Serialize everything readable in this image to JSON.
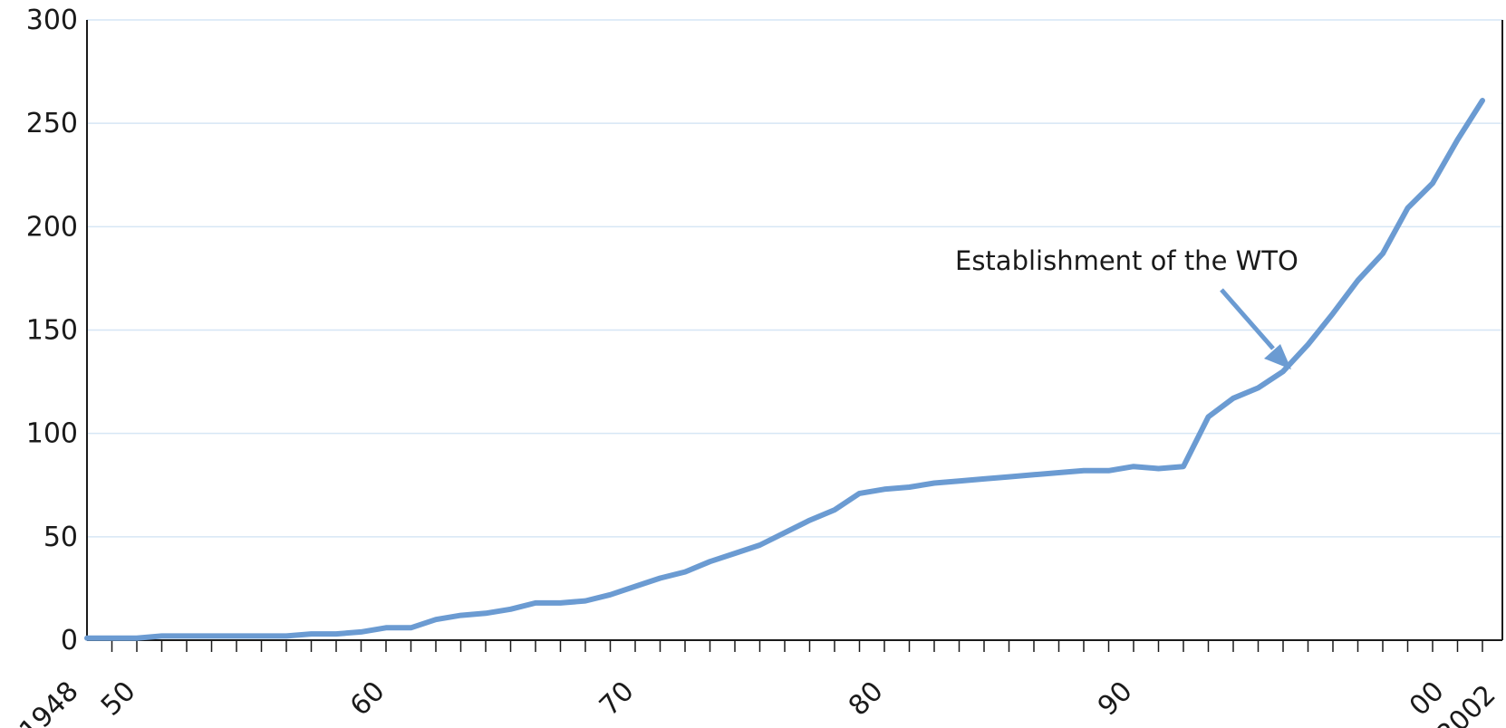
{
  "chart_data": {
    "type": "line",
    "title": "",
    "xlabel": "",
    "ylabel": "",
    "xlim": [
      1948,
      2002
    ],
    "ylim": [
      0,
      300
    ],
    "grid": true,
    "legend": "none",
    "y_ticks": [
      {
        "value": 0,
        "label": "0"
      },
      {
        "value": 50,
        "label": "50"
      },
      {
        "value": 100,
        "label": "100"
      },
      {
        "value": 150,
        "label": "150"
      },
      {
        "value": 200,
        "label": "200"
      },
      {
        "value": 250,
        "label": "250"
      },
      {
        "value": 300,
        "label": "300"
      }
    ],
    "x_tick_labels": [
      {
        "value": 1948,
        "label": "1948"
      },
      {
        "value": 1950,
        "label": "50"
      },
      {
        "value": 1960,
        "label": "60"
      },
      {
        "value": 1970,
        "label": "70"
      },
      {
        "value": 1980,
        "label": "80"
      },
      {
        "value": 1990,
        "label": "90"
      },
      {
        "value": 2000,
        "label": "00"
      },
      {
        "value": 2002,
        "label": "2002"
      }
    ],
    "series": [
      {
        "color": "#6b9bd2",
        "points": [
          [
            1948,
            1
          ],
          [
            1949,
            1
          ],
          [
            1950,
            1
          ],
          [
            1951,
            2
          ],
          [
            1952,
            2
          ],
          [
            1953,
            2
          ],
          [
            1954,
            2
          ],
          [
            1955,
            2
          ],
          [
            1956,
            2
          ],
          [
            1957,
            3
          ],
          [
            1958,
            3
          ],
          [
            1959,
            4
          ],
          [
            1960,
            6
          ],
          [
            1961,
            6
          ],
          [
            1962,
            10
          ],
          [
            1963,
            12
          ],
          [
            1964,
            13
          ],
          [
            1965,
            15
          ],
          [
            1966,
            18
          ],
          [
            1967,
            18
          ],
          [
            1968,
            19
          ],
          [
            1969,
            22
          ],
          [
            1970,
            26
          ],
          [
            1971,
            30
          ],
          [
            1972,
            33
          ],
          [
            1973,
            38
          ],
          [
            1974,
            42
          ],
          [
            1975,
            46
          ],
          [
            1976,
            52
          ],
          [
            1977,
            58
          ],
          [
            1978,
            63
          ],
          [
            1979,
            71
          ],
          [
            1980,
            73
          ],
          [
            1981,
            74
          ],
          [
            1982,
            76
          ],
          [
            1983,
            77
          ],
          [
            1984,
            78
          ],
          [
            1985,
            79
          ],
          [
            1986,
            80
          ],
          [
            1987,
            81
          ],
          [
            1988,
            82
          ],
          [
            1989,
            82
          ],
          [
            1990,
            84
          ],
          [
            1991,
            83
          ],
          [
            1992,
            84
          ],
          [
            1993,
            108
          ],
          [
            1994,
            117
          ],
          [
            1995,
            122
          ],
          [
            1996,
            130
          ],
          [
            1997,
            143
          ],
          [
            1998,
            158
          ],
          [
            1999,
            174
          ],
          [
            2000,
            187
          ],
          [
            2001,
            209
          ],
          [
            2002,
            221
          ],
          [
            2003,
            242
          ],
          [
            2004,
            261
          ]
        ]
      }
    ],
    "annotations": [
      {
        "text": "Establishment of the WTO",
        "points_to": [
          1995.5,
          128
        ]
      }
    ]
  }
}
